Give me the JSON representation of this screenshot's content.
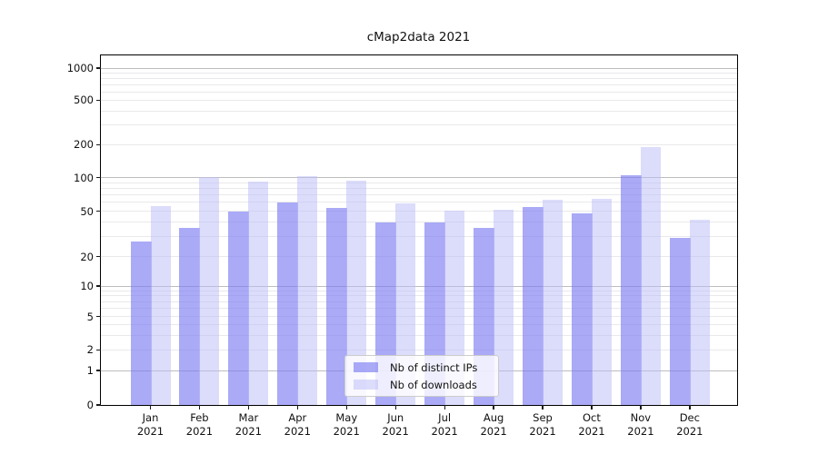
{
  "chart_data": {
    "type": "bar",
    "title": "cMap2data 2021",
    "categories": [
      "Jan 2021",
      "Feb 2021",
      "Mar 2021",
      "Apr 2021",
      "May 2021",
      "Jun 2021",
      "Jul 2021",
      "Aug 2021",
      "Sep 2021",
      "Oct 2021",
      "Nov 2021",
      "Dec 2021"
    ],
    "series": [
      {
        "name": "Nb of distinct IPs",
        "color": "#a9a9f6",
        "color_rgba": "rgba(120,120,242,0.63)",
        "values": [
          27,
          36,
          50,
          60,
          54,
          40,
          40,
          36,
          55,
          48,
          105,
          29
        ]
      },
      {
        "name": "Nb of downloads",
        "color": "#dcdcf9",
        "color_rgba": "rgba(187,187,247,0.52)",
        "values": [
          56,
          101,
          92,
          102,
          93,
          59,
          51,
          52,
          63,
          64,
          190,
          42
        ]
      }
    ],
    "xlabel": "",
    "ylabel": "",
    "yscale": "symlog",
    "yticks": [
      0,
      1,
      2,
      5,
      10,
      20,
      50,
      100,
      200,
      500,
      1000
    ],
    "ylim": [
      0,
      1300
    ],
    "grid": true,
    "legend_position": "lower-center",
    "gridline_major_color": "#bdbdbd",
    "gridline_minor_color": "#e9e9ec"
  }
}
